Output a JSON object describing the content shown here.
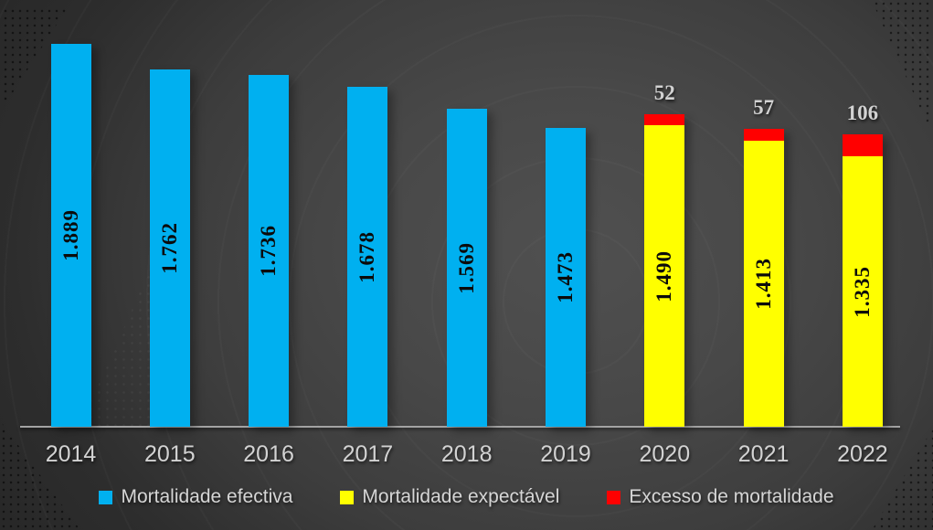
{
  "chart_data": {
    "type": "bar",
    "stacked": true,
    "orientation": "vertical",
    "grid": false,
    "y_axis_visible": false,
    "ylim": [
      0,
      2100
    ],
    "legend_position": "bottom",
    "categories": [
      "2014",
      "2015",
      "2016",
      "2017",
      "2018",
      "2019",
      "2020",
      "2021",
      "2022"
    ],
    "series": [
      {
        "name": "Mortalidade efectiva",
        "color": "#00B0F0",
        "values": [
          1889,
          1762,
          1736,
          1678,
          1569,
          1473,
          null,
          null,
          null
        ]
      },
      {
        "name": "Mortalidade expectável",
        "color": "#FFFF00",
        "values": [
          null,
          null,
          null,
          null,
          null,
          null,
          1490,
          1413,
          1335
        ]
      },
      {
        "name": "Excesso de mortalidade",
        "color": "#FF0000",
        "values": [
          null,
          null,
          null,
          null,
          null,
          null,
          52,
          57,
          106
        ]
      }
    ],
    "bar_value_labels": [
      "1.889",
      "1.762",
      "1.736",
      "1.678",
      "1.569",
      "1.473",
      "1.490",
      "1.413",
      "1.335"
    ],
    "excess_value_labels": [
      null,
      null,
      null,
      null,
      null,
      null,
      "52",
      "57",
      "106"
    ]
  },
  "legend": {
    "items": [
      {
        "label": "Mortalidade efectiva",
        "color": "#00B0F0"
      },
      {
        "label": "Mortalidade expectável",
        "color": "#FFFF00"
      },
      {
        "label": "Excesso de mortalidade",
        "color": "#FF0000"
      }
    ]
  },
  "colors": {
    "background_center": "#505050",
    "background_edge": "#262626",
    "axis_line": "#A3A3A3",
    "axis_label_text": "#D3D3D3",
    "bar_value_text": "#0B0B0B",
    "excess_label_text": "#D2D2D2",
    "legend_text": "#D6D6D6"
  }
}
